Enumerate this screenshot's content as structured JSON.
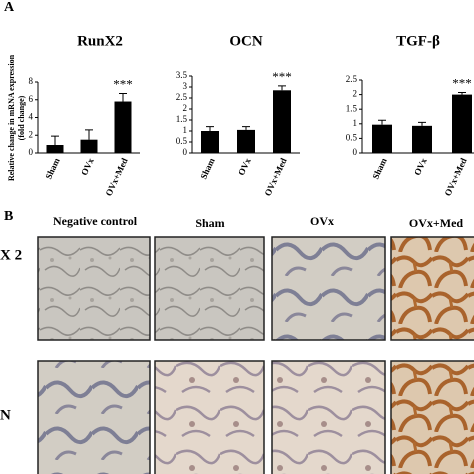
{
  "panel_labels": [
    "A",
    "B"
  ],
  "chart_data": [
    {
      "type": "bar",
      "title": "RunX2",
      "ylabel": [
        "Relative change in mRNA expression",
        "(fold change)"
      ],
      "categories": [
        "Sham",
        "OVx",
        "OVx+Med"
      ],
      "values": [
        0.9,
        1.5,
        5.8
      ],
      "errors": [
        1.0,
        1.1,
        0.9
      ],
      "color": "#000000",
      "annotation": "***",
      "ylim": [
        0,
        8
      ],
      "yticks": [
        0,
        2,
        4,
        6,
        8
      ]
    },
    {
      "type": "bar",
      "title": "OCN",
      "categories": [
        "Sham",
        "OVx",
        "OVx+Med"
      ],
      "values": [
        1.0,
        1.05,
        2.85
      ],
      "errors": [
        0.2,
        0.15,
        0.2
      ],
      "color": "#000000",
      "annotation": "***",
      "ylim": [
        0,
        3.5
      ],
      "yticks": [
        0,
        0.5,
        1,
        1.5,
        2,
        2.5,
        3,
        3.5
      ]
    },
    {
      "type": "bar",
      "title": "TGF-β",
      "categories": [
        "Sham",
        "OVx",
        "OVx+Med"
      ],
      "values": [
        0.97,
        0.93,
        2.0
      ],
      "errors": [
        0.15,
        0.12,
        0.07
      ],
      "color": "#000000",
      "annotation": "***",
      "ylim": [
        0,
        2.5
      ],
      "yticks": [
        0,
        0.5,
        1,
        1.5,
        2,
        2.5
      ]
    }
  ],
  "micrographs": {
    "columns": [
      "Negative control",
      "Sham",
      "OVx",
      "OVx+Med"
    ],
    "rows": [
      "X 2",
      "N"
    ]
  }
}
